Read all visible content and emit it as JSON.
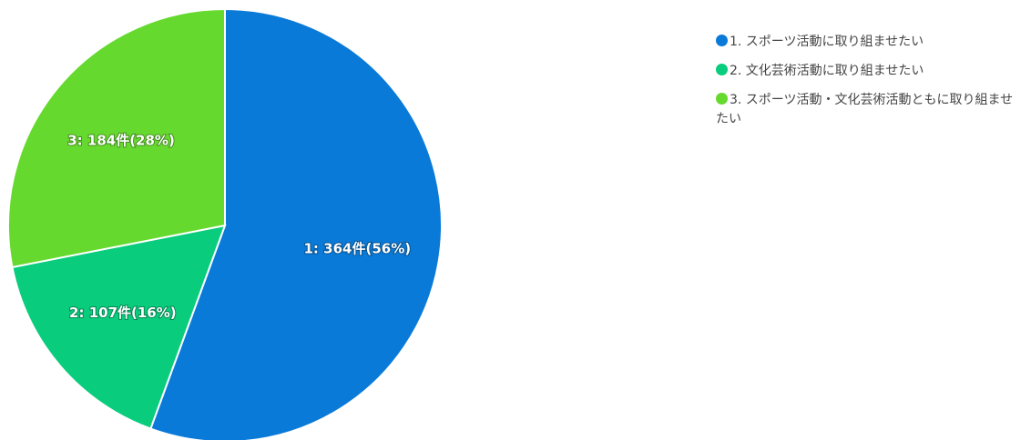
{
  "chart_data": {
    "type": "pie",
    "title": "",
    "start_angle_deg": 0,
    "direction": "clockwise",
    "slices": [
      {
        "name": "1. スポーツ活動に取り組ませたい",
        "value": 364,
        "percent": 56,
        "label": "1: 364件(56%)",
        "color": "#0a7ad8"
      },
      {
        "name": "2. 文化芸術活動に取り組ませたい",
        "value": 107,
        "percent": 16,
        "label": "2: 107件(16%)",
        "color": "#09cc7d"
      },
      {
        "name": "3. スポーツ活動・文化芸術活動ともに取り組ませたい",
        "value": 184,
        "percent": 28,
        "label": "3: 184件(28%)",
        "color": "#66d92e"
      }
    ],
    "legend": {
      "position": "top-right",
      "items": [
        {
          "label": "1. スポーツ活動に取り組ませたい",
          "color": "#0a7ad8"
        },
        {
          "label": "2. 文化芸術活動に取り組ませたい",
          "color": "#09cc7d"
        },
        {
          "label": "3. スポーツ活動・文化芸術活動ともに取り組ませたい",
          "color": "#66d92e"
        }
      ]
    }
  }
}
